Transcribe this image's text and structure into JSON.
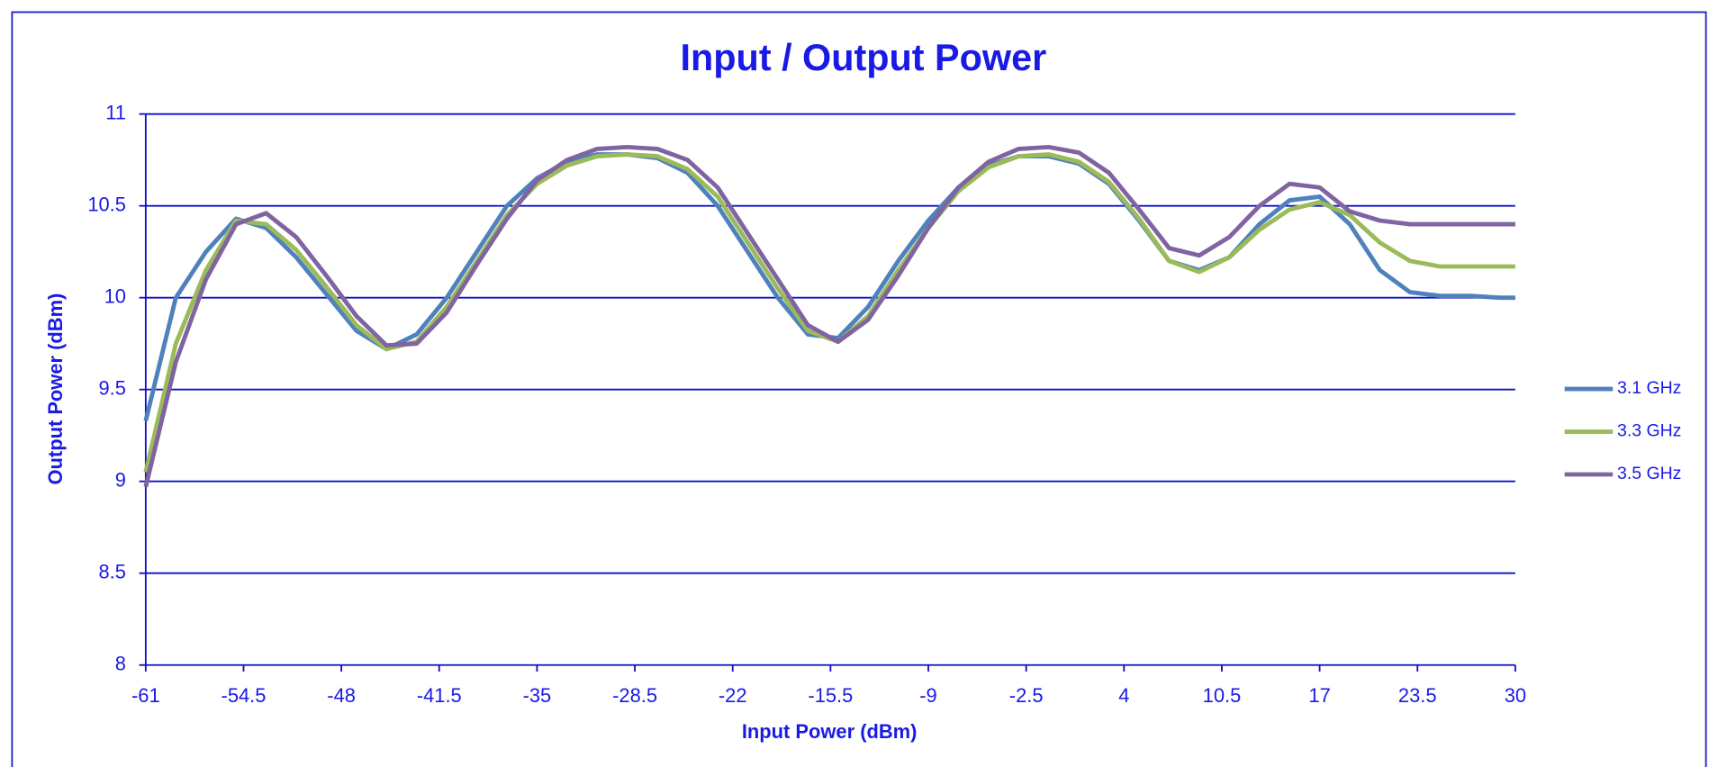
{
  "chart_data": {
    "type": "line",
    "title": "Input / Output Power",
    "xlabel": "Input Power (dBm)",
    "ylabel": "Output Power (dBm)",
    "x": [
      -61,
      -59,
      -57,
      -55,
      -53,
      -51,
      -49,
      -47,
      -45,
      -43,
      -41,
      -39,
      -37,
      -35,
      -33,
      -31,
      -29,
      -27,
      -25,
      -23,
      -21,
      -19,
      -17,
      -15,
      -13,
      -11,
      -9,
      -7,
      -5,
      -3,
      -1,
      1,
      3,
      5,
      7,
      9,
      11,
      13,
      15,
      17,
      19,
      21,
      23,
      25,
      27,
      29,
      30
    ],
    "series": [
      {
        "name": "3.1 GHz",
        "color": "#4f81bd",
        "values": [
          9.33,
          10.0,
          10.25,
          10.43,
          10.38,
          10.22,
          10.02,
          9.82,
          9.72,
          9.8,
          10.0,
          10.25,
          10.5,
          10.65,
          10.74,
          10.78,
          10.78,
          10.76,
          10.68,
          10.5,
          10.25,
          10.0,
          9.8,
          9.78,
          9.95,
          10.2,
          10.42,
          10.6,
          10.72,
          10.77,
          10.77,
          10.73,
          10.62,
          10.42,
          10.2,
          10.15,
          10.22,
          10.4,
          10.53,
          10.55,
          10.4,
          10.15,
          10.03,
          10.01,
          10.01,
          10.0,
          10.0
        ]
      },
      {
        "name": "3.3 GHz",
        "color": "#9bbb59",
        "values": [
          9.05,
          9.75,
          10.15,
          10.42,
          10.4,
          10.26,
          10.06,
          9.85,
          9.72,
          9.76,
          9.95,
          10.2,
          10.45,
          10.62,
          10.72,
          10.77,
          10.78,
          10.77,
          10.7,
          10.55,
          10.3,
          10.05,
          9.82,
          9.76,
          9.9,
          10.15,
          10.38,
          10.58,
          10.71,
          10.77,
          10.78,
          10.74,
          10.63,
          10.43,
          10.2,
          10.14,
          10.22,
          10.37,
          10.48,
          10.52,
          10.45,
          10.3,
          10.2,
          10.17,
          10.17,
          10.17,
          10.17
        ]
      },
      {
        "name": "3.5 GHz",
        "color": "#8064a2",
        "values": [
          8.97,
          9.65,
          10.1,
          10.4,
          10.46,
          10.33,
          10.12,
          9.9,
          9.74,
          9.75,
          9.92,
          10.18,
          10.43,
          10.64,
          10.75,
          10.81,
          10.82,
          10.81,
          10.75,
          10.6,
          10.35,
          10.1,
          9.85,
          9.76,
          9.88,
          10.12,
          10.38,
          10.6,
          10.74,
          10.81,
          10.82,
          10.79,
          10.68,
          10.48,
          10.27,
          10.23,
          10.33,
          10.5,
          10.62,
          10.6,
          10.47,
          10.42,
          10.4,
          10.4,
          10.4,
          10.4,
          10.4
        ]
      }
    ],
    "xlim": [
      -61,
      30
    ],
    "xticks": [
      -61,
      -54.5,
      -48,
      -41.5,
      -35,
      -28.5,
      -22,
      -15.5,
      -9,
      -2.5,
      4,
      10.5,
      17,
      23.5,
      30
    ],
    "ylim": [
      8,
      11
    ],
    "yticks": [
      8,
      8.5,
      9,
      9.5,
      10,
      10.5,
      11
    ],
    "grid": true,
    "legend": "right"
  }
}
